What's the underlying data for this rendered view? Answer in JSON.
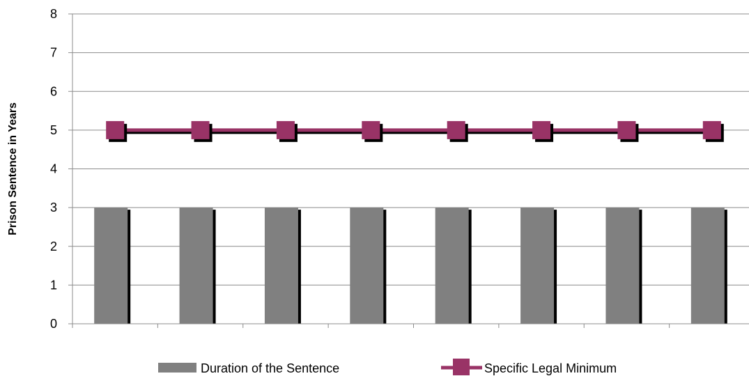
{
  "chart_data": {
    "type": "bar",
    "categories": [
      "",
      "",
      "",
      "",
      "",
      "",
      "",
      ""
    ],
    "series": [
      {
        "name": "Duration of the Sentence",
        "kind": "bar",
        "values": [
          3,
          3,
          3,
          3,
          3,
          3,
          3,
          3
        ],
        "color": "#808080"
      },
      {
        "name": "Specific Legal Minimum",
        "kind": "line",
        "values": [
          5,
          5,
          5,
          5,
          5,
          5,
          5,
          5
        ],
        "color": "#993366"
      }
    ],
    "title": "",
    "xlabel": "",
    "ylabel": "Prison Sentence in Years",
    "ylim": [
      0,
      8
    ],
    "yticks": [
      0,
      1,
      2,
      3,
      4,
      5,
      6,
      7,
      8
    ],
    "grid": true,
    "legend_position": "bottom"
  }
}
